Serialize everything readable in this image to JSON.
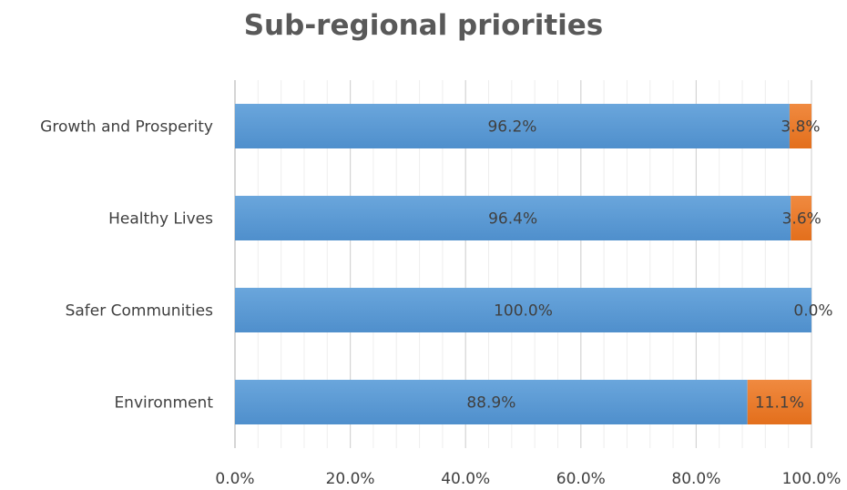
{
  "chart_data": {
    "type": "bar",
    "orientation": "horizontal",
    "stacked": true,
    "title": "Sub-regional priorities",
    "categories": [
      "Growth and Prosperity",
      "Healthy Lives",
      "Safer Communities",
      "Environment"
    ],
    "series": [
      {
        "values": [
          96.2,
          96.4,
          100.0,
          88.9
        ],
        "value_labels": [
          "96.2%",
          "96.4%",
          "100.0%",
          "88.9%"
        ],
        "color": "#5b9bd5"
      },
      {
        "values": [
          3.8,
          3.6,
          0.0,
          11.1
        ],
        "value_labels": [
          "3.8%",
          "3.6%",
          "0.0%",
          "11.1%"
        ],
        "color": "#ed7d31"
      }
    ],
    "xlim": [
      0,
      100
    ],
    "x_ticks": [
      "0.0%",
      "20.0%",
      "40.0%",
      "60.0%",
      "80.0%",
      "100.0%"
    ],
    "grid": true,
    "legend": "none"
  }
}
